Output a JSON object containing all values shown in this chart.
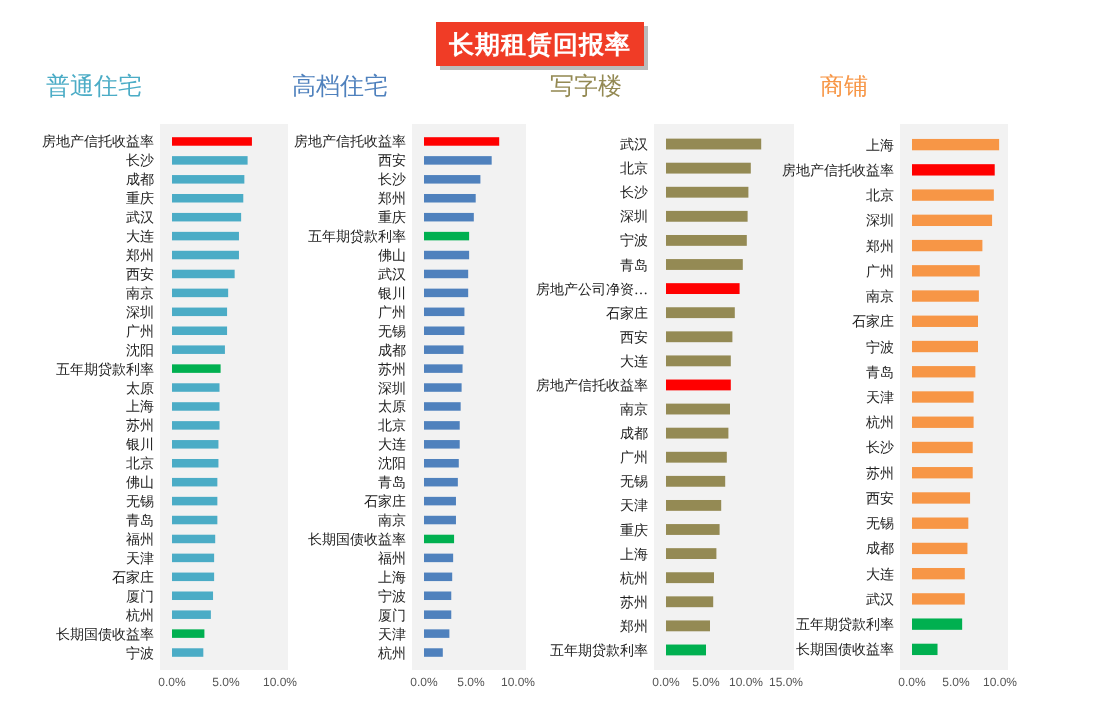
{
  "chart_data": [
    {
      "type": "other",
      "title": "长期租赁回报率"
    },
    {
      "type": "bar",
      "orientation": "horizontal",
      "title": "普通住宅",
      "categories": [
        "房地产信托收益率",
        "长沙",
        "成都",
        "重庆",
        "武汉",
        "大连",
        "郑州",
        "西安",
        "南京",
        "深圳",
        "广州",
        "沈阳",
        "五年期贷款利率",
        "太原",
        "上海",
        "苏州",
        "银川",
        "北京",
        "佛山",
        "无锡",
        "青岛",
        "福州",
        "天津",
        "石家庄",
        "厦门",
        "杭州",
        "长期国债收益率",
        "宁波"
      ],
      "values": [
        7.4,
        7.0,
        6.7,
        6.6,
        6.4,
        6.2,
        6.2,
        5.8,
        5.2,
        5.1,
        5.1,
        4.9,
        4.5,
        4.4,
        4.4,
        4.4,
        4.3,
        4.3,
        4.2,
        4.2,
        4.2,
        4.0,
        3.9,
        3.9,
        3.8,
        3.6,
        3.0,
        2.9
      ],
      "colors": [
        "#ff0000",
        "#4bacc6",
        "#4bacc6",
        "#4bacc6",
        "#4bacc6",
        "#4bacc6",
        "#4bacc6",
        "#4bacc6",
        "#4bacc6",
        "#4bacc6",
        "#4bacc6",
        "#4bacc6",
        "#00b050",
        "#4bacc6",
        "#4bacc6",
        "#4bacc6",
        "#4bacc6",
        "#4bacc6",
        "#4bacc6",
        "#4bacc6",
        "#4bacc6",
        "#4bacc6",
        "#4bacc6",
        "#4bacc6",
        "#4bacc6",
        "#4bacc6",
        "#00b050",
        "#4bacc6"
      ],
      "xlim": [
        0,
        10
      ],
      "xticks": [
        {
          "value": 0,
          "label": "0.0%"
        },
        {
          "value": 5,
          "label": "5.0%"
        },
        {
          "value": 10,
          "label": "10.0%"
        }
      ]
    },
    {
      "type": "bar",
      "orientation": "horizontal",
      "title": "高档住宅",
      "categories": [
        "房地产信托收益率",
        "西安",
        "长沙",
        "郑州",
        "重庆",
        "五年期贷款利率",
        "佛山",
        "武汉",
        "银川",
        "广州",
        "无锡",
        "成都",
        "苏州",
        "深圳",
        "太原",
        "北京",
        "大连",
        "沈阳",
        "青岛",
        "石家庄",
        "南京",
        "长期国债收益率",
        "福州",
        "上海",
        "宁波",
        "厦门",
        "天津",
        "杭州"
      ],
      "values": [
        8.0,
        7.2,
        6.0,
        5.5,
        5.3,
        4.8,
        4.8,
        4.7,
        4.7,
        4.3,
        4.3,
        4.2,
        4.1,
        4.0,
        3.9,
        3.8,
        3.8,
        3.7,
        3.6,
        3.4,
        3.4,
        3.2,
        3.1,
        3.0,
        2.9,
        2.9,
        2.7,
        2.0
      ],
      "colors": [
        "#ff0000",
        "#4f81bd",
        "#4f81bd",
        "#4f81bd",
        "#4f81bd",
        "#00b050",
        "#4f81bd",
        "#4f81bd",
        "#4f81bd",
        "#4f81bd",
        "#4f81bd",
        "#4f81bd",
        "#4f81bd",
        "#4f81bd",
        "#4f81bd",
        "#4f81bd",
        "#4f81bd",
        "#4f81bd",
        "#4f81bd",
        "#4f81bd",
        "#4f81bd",
        "#00b050",
        "#4f81bd",
        "#4f81bd",
        "#4f81bd",
        "#4f81bd",
        "#4f81bd",
        "#4f81bd"
      ],
      "xlim": [
        0,
        10
      ],
      "xticks": [
        {
          "value": 0,
          "label": "0.0%"
        },
        {
          "value": 5,
          "label": "5.0%"
        },
        {
          "value": 10,
          "label": "10.0%"
        }
      ]
    },
    {
      "type": "bar",
      "orientation": "horizontal",
      "title": "写字楼",
      "categories": [
        "武汉",
        "北京",
        "长沙",
        "深圳",
        "宁波",
        "青岛",
        "房地产公司净资…",
        "石家庄",
        "西安",
        "大连",
        "房地产信托收益率",
        "南京",
        "成都",
        "广州",
        "无锡",
        "天津",
        "重庆",
        "上海",
        "杭州",
        "苏州",
        "郑州",
        "五年期贷款利率"
      ],
      "values": [
        11.9,
        10.6,
        10.3,
        10.2,
        10.1,
        9.6,
        9.2,
        8.6,
        8.3,
        8.1,
        8.1,
        8.0,
        7.8,
        7.6,
        7.4,
        6.9,
        6.7,
        6.3,
        6.0,
        5.9,
        5.5,
        5.0
      ],
      "colors": [
        "#948a54",
        "#948a54",
        "#948a54",
        "#948a54",
        "#948a54",
        "#948a54",
        "#ff0000",
        "#948a54",
        "#948a54",
        "#948a54",
        "#ff0000",
        "#948a54",
        "#948a54",
        "#948a54",
        "#948a54",
        "#948a54",
        "#948a54",
        "#948a54",
        "#948a54",
        "#948a54",
        "#948a54",
        "#00b050"
      ],
      "xlim": [
        0,
        15
      ],
      "xticks": [
        {
          "value": 0,
          "label": "0.0%"
        },
        {
          "value": 5,
          "label": "5.0%"
        },
        {
          "value": 10,
          "label": "10.0%"
        },
        {
          "value": 15,
          "label": "15.0%"
        }
      ]
    },
    {
      "type": "bar",
      "orientation": "horizontal",
      "title": "商铺",
      "categories": [
        "上海",
        "房地产信托收益率",
        "北京",
        "深圳",
        "郑州",
        "广州",
        "南京",
        "石家庄",
        "宁波",
        "青岛",
        "天津",
        "杭州",
        "长沙",
        "苏州",
        "西安",
        "无锡",
        "成都",
        "大连",
        "武汉",
        "五年期贷款利率",
        "长期国债收益率"
      ],
      "values": [
        9.9,
        9.4,
        9.3,
        9.1,
        8.0,
        7.7,
        7.6,
        7.5,
        7.5,
        7.2,
        7.0,
        7.0,
        6.9,
        6.9,
        6.6,
        6.4,
        6.3,
        6.0,
        6.0,
        5.7,
        2.9
      ],
      "colors": [
        "#f79646",
        "#ff0000",
        "#f79646",
        "#f79646",
        "#f79646",
        "#f79646",
        "#f79646",
        "#f79646",
        "#f79646",
        "#f79646",
        "#f79646",
        "#f79646",
        "#f79646",
        "#f79646",
        "#f79646",
        "#f79646",
        "#f79646",
        "#f79646",
        "#f79646",
        "#00b050",
        "#00b050"
      ],
      "xlim": [
        0,
        10
      ],
      "xticks": [
        {
          "value": 0,
          "label": "0.0%"
        },
        {
          "value": 5,
          "label": "5.0%"
        },
        {
          "value": 10,
          "label": "10.0%"
        }
      ]
    }
  ]
}
